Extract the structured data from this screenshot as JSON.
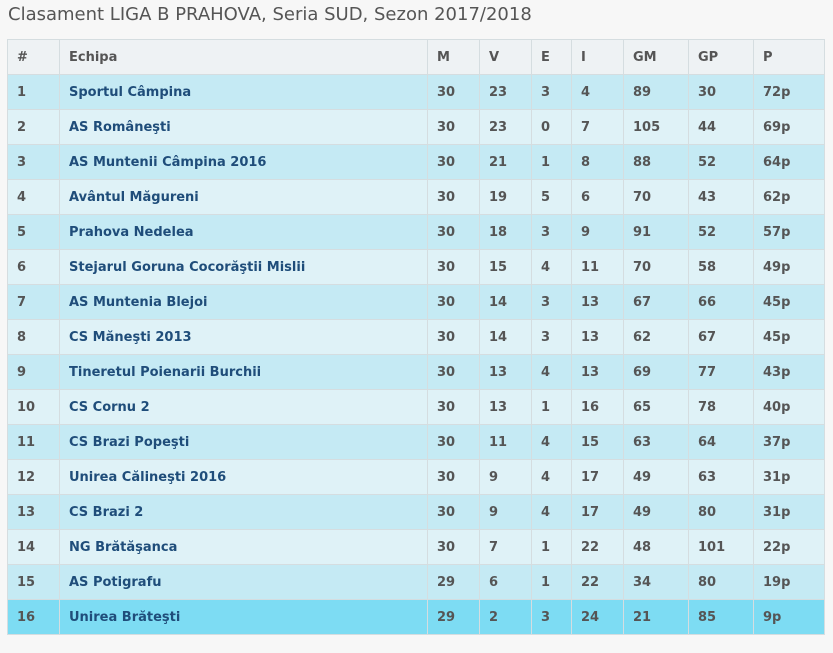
{
  "title": "Clasament LIGA B PRAHOVA, Seria SUD, Sezon 2017/2018",
  "columns": [
    "#",
    "Echipa",
    "M",
    "V",
    "E",
    "I",
    "GM",
    "GP",
    "P"
  ],
  "rows": [
    {
      "pos": "1",
      "team": "Sportul Câmpina",
      "m": "30",
      "v": "23",
      "e": "3",
      "i": "4",
      "gm": "89",
      "gp": "30",
      "p": "72p"
    },
    {
      "pos": "2",
      "team": "AS Româneşti",
      "m": "30",
      "v": "23",
      "e": "0",
      "i": "7",
      "gm": "105",
      "gp": "44",
      "p": "69p"
    },
    {
      "pos": "3",
      "team": "AS Muntenii Câmpina 2016",
      "m": "30",
      "v": "21",
      "e": "1",
      "i": "8",
      "gm": "88",
      "gp": "52",
      "p": "64p"
    },
    {
      "pos": "4",
      "team": "Avântul Măgureni",
      "m": "30",
      "v": "19",
      "e": "5",
      "i": "6",
      "gm": "70",
      "gp": "43",
      "p": "62p"
    },
    {
      "pos": "5",
      "team": "Prahova Nedelea",
      "m": "30",
      "v": "18",
      "e": "3",
      "i": "9",
      "gm": "91",
      "gp": "52",
      "p": "57p"
    },
    {
      "pos": "6",
      "team": "Stejarul Goruna Cocorăştii Mislii",
      "m": "30",
      "v": "15",
      "e": "4",
      "i": "11",
      "gm": "70",
      "gp": "58",
      "p": "49p"
    },
    {
      "pos": "7",
      "team": "AS Muntenia Blejoi",
      "m": "30",
      "v": "14",
      "e": "3",
      "i": "13",
      "gm": "67",
      "gp": "66",
      "p": "45p"
    },
    {
      "pos": "8",
      "team": "CS Măneşti 2013",
      "m": "30",
      "v": "14",
      "e": "3",
      "i": "13",
      "gm": "62",
      "gp": "67",
      "p": "45p"
    },
    {
      "pos": "9",
      "team": "Tineretul Poienarii Burchii",
      "m": "30",
      "v": "13",
      "e": "4",
      "i": "13",
      "gm": "69",
      "gp": "77",
      "p": "43p"
    },
    {
      "pos": "10",
      "team": "CS Cornu 2",
      "m": "30",
      "v": "13",
      "e": "1",
      "i": "16",
      "gm": "65",
      "gp": "78",
      "p": "40p"
    },
    {
      "pos": "11",
      "team": "CS Brazi Popeşti",
      "m": "30",
      "v": "11",
      "e": "4",
      "i": "15",
      "gm": "63",
      "gp": "64",
      "p": "37p"
    },
    {
      "pos": "12",
      "team": "Unirea Călineşti 2016",
      "m": "30",
      "v": "9",
      "e": "4",
      "i": "17",
      "gm": "49",
      "gp": "63",
      "p": "31p"
    },
    {
      "pos": "13",
      "team": "CS Brazi 2",
      "m": "30",
      "v": "9",
      "e": "4",
      "i": "17",
      "gm": "49",
      "gp": "80",
      "p": "31p"
    },
    {
      "pos": "14",
      "team": "NG Brătăşanca",
      "m": "30",
      "v": "7",
      "e": "1",
      "i": "22",
      "gm": "48",
      "gp": "101",
      "p": "22p"
    },
    {
      "pos": "15",
      "team": "AS Potigrafu",
      "m": "29",
      "v": "6",
      "e": "1",
      "i": "22",
      "gm": "34",
      "gp": "80",
      "p": "19p"
    },
    {
      "pos": "16",
      "team": "Unirea Brăteşti",
      "m": "29",
      "v": "2",
      "e": "3",
      "i": "24",
      "gm": "21",
      "gp": "85",
      "p": "9p",
      "highlight": true
    }
  ],
  "colors": {
    "row_odd": "#c5eaf4",
    "row_even": "#dff2f7",
    "row_highlight": "#7ddcf3",
    "header_bg": "#eef2f4",
    "team_text": "#1f4d7a",
    "text": "#555555"
  }
}
